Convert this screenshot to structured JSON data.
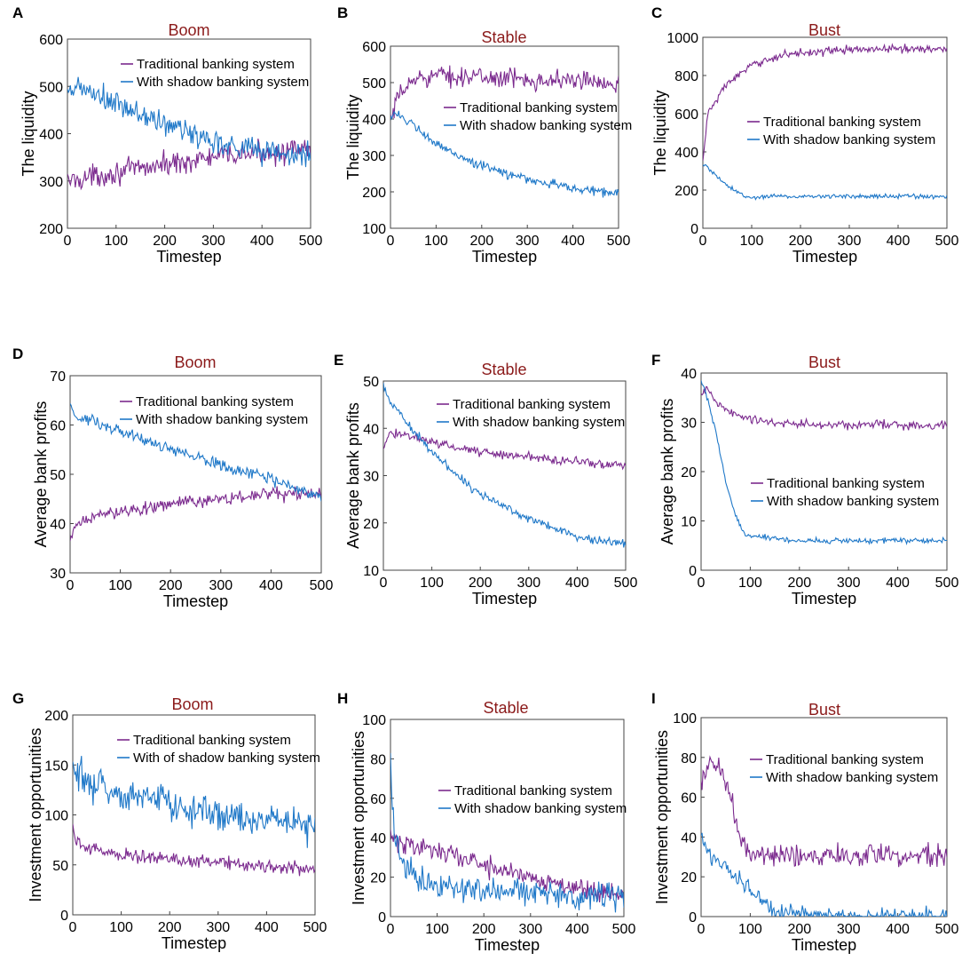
{
  "colors": {
    "traditional": "#7b2a8e",
    "shadow": "#1f78c8",
    "title": "#8b1a1a"
  },
  "chart_data": [
    {
      "panel": "A",
      "type": "line",
      "title": "Boom",
      "xlabel": "Timestep",
      "ylabel": "The liquidity",
      "xlim": [
        0,
        500
      ],
      "ylim": [
        200,
        600
      ],
      "xticks": [
        "0",
        "100",
        "200",
        "300",
        "400",
        "500"
      ],
      "yticks": [
        "200",
        "300",
        "400",
        "500",
        "600"
      ],
      "legend": "top-right",
      "series": [
        {
          "name": "Traditional banking system",
          "key": "traditional",
          "noise": 18,
          "x": [
            0,
            100,
            200,
            300,
            400,
            500
          ],
          "values": [
            300,
            318,
            335,
            350,
            360,
            365
          ]
        },
        {
          "name": "With shadow banking system",
          "key": "shadow",
          "noise": 22,
          "x": [
            0,
            20,
            100,
            200,
            300,
            400,
            500
          ],
          "values": [
            475,
            500,
            460,
            420,
            385,
            365,
            350
          ]
        }
      ]
    },
    {
      "panel": "B",
      "type": "line",
      "title": "Stable",
      "xlabel": "Timestep",
      "ylabel": "The liquidity",
      "xlim": [
        0,
        500
      ],
      "ylim": [
        100,
        600
      ],
      "xticks": [
        "0",
        "100",
        "200",
        "300",
        "400",
        "500"
      ],
      "yticks": [
        "100",
        "200",
        "300",
        "400",
        "500",
        "600"
      ],
      "legend": "center-right",
      "series": [
        {
          "name": "Traditional banking system",
          "key": "traditional",
          "noise": 20,
          "x": [
            0,
            20,
            60,
            100,
            200,
            300,
            400,
            500
          ],
          "values": [
            390,
            470,
            515,
            520,
            515,
            510,
            505,
            500
          ]
        },
        {
          "name": "With shadow banking system",
          "key": "shadow",
          "noise": 10,
          "x": [
            0,
            10,
            50,
            100,
            200,
            300,
            400,
            500
          ],
          "values": [
            410,
            420,
            380,
            330,
            270,
            235,
            210,
            195
          ]
        }
      ]
    },
    {
      "panel": "C",
      "type": "line",
      "title": "Bust",
      "xlabel": "Timestep",
      "ylabel": "The liquidity",
      "xlim": [
        0,
        500
      ],
      "ylim": [
        0,
        1000
      ],
      "xticks": [
        "0",
        "100",
        "200",
        "300",
        "400",
        "500"
      ],
      "yticks": [
        "0",
        "200",
        "400",
        "600",
        "800",
        "1000"
      ],
      "legend": "center-right",
      "series": [
        {
          "name": "Traditional banking system",
          "key": "traditional",
          "noise": 16,
          "x": [
            0,
            10,
            50,
            100,
            150,
            200,
            300,
            400,
            500
          ],
          "values": [
            350,
            600,
            760,
            850,
            900,
            920,
            935,
            940,
            940
          ]
        },
        {
          "name": "With shadow banking system",
          "key": "shadow",
          "noise": 9,
          "x": [
            0,
            10,
            50,
            90,
            150,
            200,
            300,
            400,
            500
          ],
          "values": [
            330,
            320,
            220,
            160,
            170,
            165,
            170,
            168,
            165
          ]
        }
      ]
    },
    {
      "panel": "D",
      "type": "line",
      "title": "Boom",
      "xlabel": "Timestep",
      "ylabel": "Average bank profits",
      "xlim": [
        0,
        500
      ],
      "ylim": [
        30,
        70
      ],
      "xticks": [
        "0",
        "100",
        "200",
        "300",
        "400",
        "500"
      ],
      "yticks": [
        "30",
        "40",
        "50",
        "60",
        "70"
      ],
      "legend": "top-right",
      "series": [
        {
          "name": "Traditional banking system",
          "key": "traditional",
          "noise": 1.0,
          "x": [
            0,
            10,
            30,
            100,
            200,
            300,
            400,
            500
          ],
          "values": [
            36,
            39,
            41,
            42.5,
            44,
            45,
            46,
            46
          ]
        },
        {
          "name": "With shadow banking system",
          "key": "shadow",
          "noise": 0.9,
          "x": [
            0,
            10,
            100,
            200,
            300,
            400,
            500
          ],
          "values": [
            65,
            62,
            58.5,
            55,
            52,
            49,
            45.5
          ]
        }
      ]
    },
    {
      "panel": "E",
      "type": "line",
      "title": "Stable",
      "xlabel": "Timestep",
      "ylabel": "Average bank profits",
      "xlim": [
        0,
        500
      ],
      "ylim": [
        10,
        50
      ],
      "xticks": [
        "0",
        "100",
        "200",
        "300",
        "400",
        "500"
      ],
      "yticks": [
        "10",
        "20",
        "30",
        "40",
        "50"
      ],
      "legend": "top-right",
      "series": [
        {
          "name": "Traditional banking system",
          "key": "traditional",
          "noise": 0.7,
          "x": [
            0,
            10,
            40,
            100,
            200,
            300,
            400,
            500
          ],
          "values": [
            36,
            38.5,
            39,
            37,
            35,
            34,
            33,
            32
          ]
        },
        {
          "name": "With shadow banking system",
          "key": "shadow",
          "noise": 0.7,
          "x": [
            0,
            10,
            50,
            100,
            150,
            200,
            300,
            400,
            500
          ],
          "values": [
            49,
            46.5,
            41,
            35,
            30,
            26,
            21,
            17,
            15.5
          ]
        }
      ]
    },
    {
      "panel": "F",
      "type": "line",
      "title": "Bust",
      "xlabel": "Timestep",
      "ylabel": "Average bank profits",
      "xlim": [
        0,
        500
      ],
      "ylim": [
        0,
        40
      ],
      "xticks": [
        "0",
        "100",
        "200",
        "300",
        "400",
        "500"
      ],
      "yticks": [
        "0",
        "10",
        "20",
        "30",
        "40"
      ],
      "legend": "center-right",
      "series": [
        {
          "name": "Traditional banking system",
          "key": "traditional",
          "noise": 0.7,
          "x": [
            0,
            10,
            30,
            60,
            100,
            200,
            300,
            400,
            500
          ],
          "values": [
            35,
            37,
            34,
            32,
            30.5,
            29.5,
            29.5,
            29.5,
            29.5
          ]
        },
        {
          "name": "With shadow banking system",
          "key": "shadow",
          "noise": 0.4,
          "x": [
            0,
            10,
            30,
            50,
            70,
            90,
            150,
            200,
            300,
            400,
            500
          ],
          "values": [
            38,
            36,
            28,
            18,
            11,
            7,
            6.5,
            6,
            6,
            6,
            6
          ]
        }
      ]
    },
    {
      "panel": "G",
      "type": "line",
      "title": "Boom",
      "xlabel": "Timestep",
      "ylabel": "Investment opportunities",
      "xlim": [
        0,
        500
      ],
      "ylim": [
        0,
        200
      ],
      "xticks": [
        "0",
        "100",
        "200",
        "300",
        "400",
        "500"
      ],
      "yticks": [
        "0",
        "50",
        "100",
        "150",
        "200"
      ],
      "legend": "top-right",
      "series": [
        {
          "name": "Traditional banking system",
          "key": "traditional",
          "noise": 5,
          "x": [
            0,
            5,
            20,
            100,
            200,
            300,
            400,
            500
          ],
          "values": [
            90,
            75,
            68,
            60,
            56,
            53,
            49,
            45
          ]
        },
        {
          "name": "With of shadow banking system",
          "key": "shadow",
          "noise": 13,
          "x": [
            0,
            10,
            50,
            100,
            200,
            300,
            400,
            500
          ],
          "values": [
            150,
            145,
            130,
            120,
            112,
            103,
            96,
            88
          ]
        }
      ]
    },
    {
      "panel": "H",
      "type": "line",
      "title": "Stable",
      "xlabel": "Timestep",
      "ylabel": "Investment opportunities",
      "xlim": [
        0,
        500
      ],
      "ylim": [
        0,
        100
      ],
      "xticks": [
        "0",
        "100",
        "200",
        "300",
        "400",
        "500"
      ],
      "yticks": [
        "0",
        "20",
        "40",
        "60",
        "80",
        "100"
      ],
      "legend": "center-right",
      "series": [
        {
          "name": "Traditional banking system",
          "key": "traditional",
          "noise": 4,
          "x": [
            0,
            10,
            50,
            100,
            200,
            300,
            400,
            500
          ],
          "values": [
            42,
            38,
            36,
            34,
            26,
            20,
            15,
            11
          ]
        },
        {
          "name": "With shadow banking system",
          "key": "shadow",
          "noise": 5,
          "x": [
            0,
            3,
            10,
            30,
            60,
            100,
            200,
            300,
            400,
            500
          ],
          "values": [
            80,
            60,
            38,
            26,
            18,
            15,
            13,
            12,
            11,
            11
          ]
        }
      ]
    },
    {
      "panel": "I",
      "type": "line",
      "title": "Bust",
      "xlabel": "Timestep",
      "ylabel": "Investment opportunities",
      "xlim": [
        0,
        500
      ],
      "ylim": [
        0,
        100
      ],
      "xticks": [
        "0",
        "100",
        "200",
        "300",
        "400",
        "500"
      ],
      "yticks": [
        "0",
        "20",
        "40",
        "60",
        "80",
        "100"
      ],
      "legend": "top-right",
      "series": [
        {
          "name": "Traditional banking system",
          "key": "traditional",
          "noise": 4,
          "x": [
            0,
            20,
            40,
            60,
            80,
            100,
            200,
            300,
            400,
            500
          ],
          "values": [
            65,
            78,
            75,
            60,
            40,
            32,
            30,
            31,
            31,
            30
          ]
        },
        {
          "name": "With shadow banking system",
          "key": "shadow",
          "noise": 3,
          "x": [
            0,
            10,
            50,
            100,
            150,
            200,
            300,
            400,
            500
          ],
          "values": [
            42,
            33,
            25,
            14,
            3,
            1,
            0,
            0,
            0
          ]
        }
      ]
    }
  ]
}
